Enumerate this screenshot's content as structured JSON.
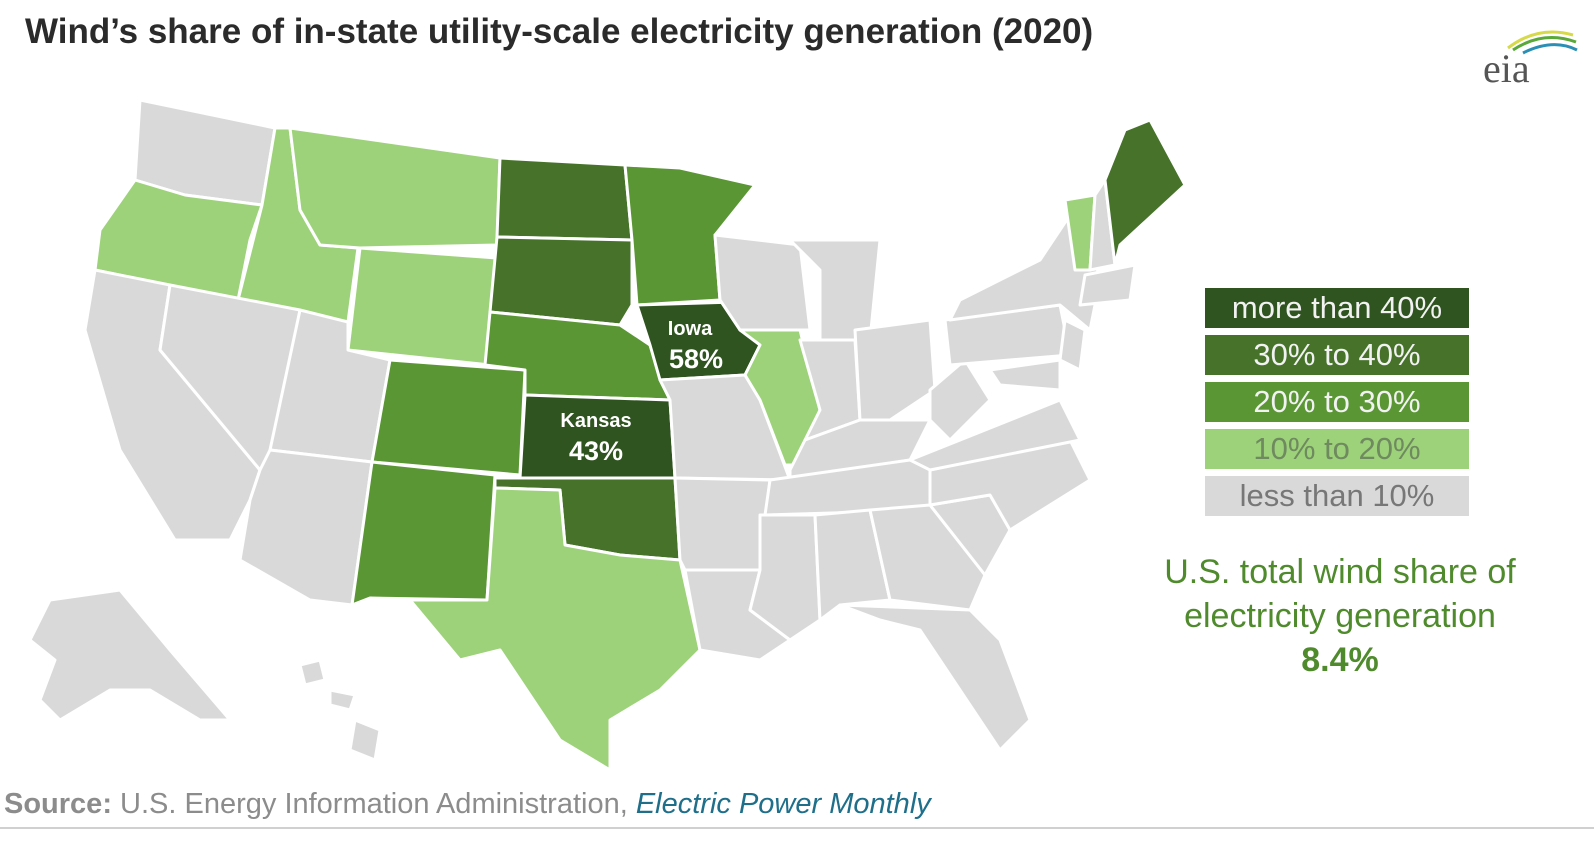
{
  "title": "Wind’s share of in-state utility-scale electricity generation (2020)",
  "logo_text": "eia",
  "colors": {
    "gt40": "#2f5420",
    "c30_40": "#46722a",
    "c20_30": "#5a9634",
    "c10_20": "#9dd27a",
    "lt10": "#d9d9d9"
  },
  "legend": [
    {
      "label": "more than 40%",
      "color": "#2f5420",
      "text_color": "#f2f2f2"
    },
    {
      "label": "30% to 40%",
      "color": "#46722a",
      "text_color": "#f2f2f2"
    },
    {
      "label": "20% to 30%",
      "color": "#5a9634",
      "text_color": "#f2f2f2"
    },
    {
      "label": "10% to 20%",
      "color": "#9dd27a",
      "text_color": "#6e8a5e"
    },
    {
      "label": "less than 10%",
      "color": "#d9d9d9",
      "text_color": "#777777"
    }
  ],
  "callouts": {
    "iowa": {
      "name": "Iowa",
      "value": "58%"
    },
    "kansas": {
      "name": "Kansas",
      "value": "43%"
    }
  },
  "total": {
    "line1": "U.S. total wind share of",
    "line2": "electricity generation",
    "value": "8.4%"
  },
  "source": {
    "label": "Source:",
    "text": " U.S. Energy Information Administration, ",
    "publication": "Electric Power Monthly"
  },
  "state_categories": {
    "WA": "lt10",
    "OR": "c10_20",
    "ID": "c10_20",
    "MT": "c10_20",
    "WY": "c10_20",
    "CA": "lt10",
    "NV": "lt10",
    "UT": "lt10",
    "AZ": "lt10",
    "CO": "c20_30",
    "NM": "c20_30",
    "ND": "c30_40",
    "SD": "c30_40",
    "NE": "c20_30",
    "KS": "gt40",
    "OK": "c30_40",
    "TX": "c10_20",
    "MN": "c20_30",
    "IA": "gt40",
    "MO": "lt10",
    "AR": "lt10",
    "LA": "lt10",
    "WI": "lt10",
    "IL": "c10_20",
    "MI": "lt10",
    "IN": "lt10",
    "OH": "lt10",
    "KY": "lt10",
    "TN": "lt10",
    "MS": "lt10",
    "AL": "lt10",
    "GA": "lt10",
    "FL": "lt10",
    "SC": "lt10",
    "NC": "lt10",
    "VA": "lt10",
    "WV": "lt10",
    "PA": "lt10",
    "NY": "lt10",
    "VT": "c10_20",
    "NH": "lt10",
    "ME": "c30_40",
    "MA": "lt10",
    "NJ": "lt10",
    "MD": "lt10",
    "AK": "lt10",
    "HI": "lt10",
    "HI2": "lt10",
    "HI3": "lt10"
  }
}
